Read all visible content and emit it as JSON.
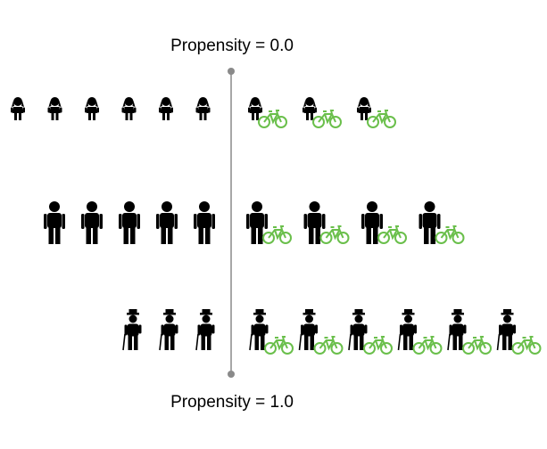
{
  "labels": {
    "top": "Propensity = 0.0",
    "bottom": "Propensity = 1.0"
  },
  "colors": {
    "figure": "#000000",
    "bicycle": "#6abf4b",
    "axis": "#8a8a8a"
  },
  "icons": {
    "child": "child-icon",
    "adult": "adult-icon",
    "elder": "elder-with-cane-icon",
    "bicycle": "bicycle-icon"
  },
  "rows": [
    {
      "group": "children",
      "icon": "child-icon",
      "without_bicycle": 6,
      "with_bicycle": 3
    },
    {
      "group": "adults",
      "icon": "adult-icon",
      "without_bicycle": 5,
      "with_bicycle": 4
    },
    {
      "group": "elderly",
      "icon": "elder-with-cane-icon",
      "without_bicycle": 3,
      "with_bicycle": 6
    }
  ]
}
